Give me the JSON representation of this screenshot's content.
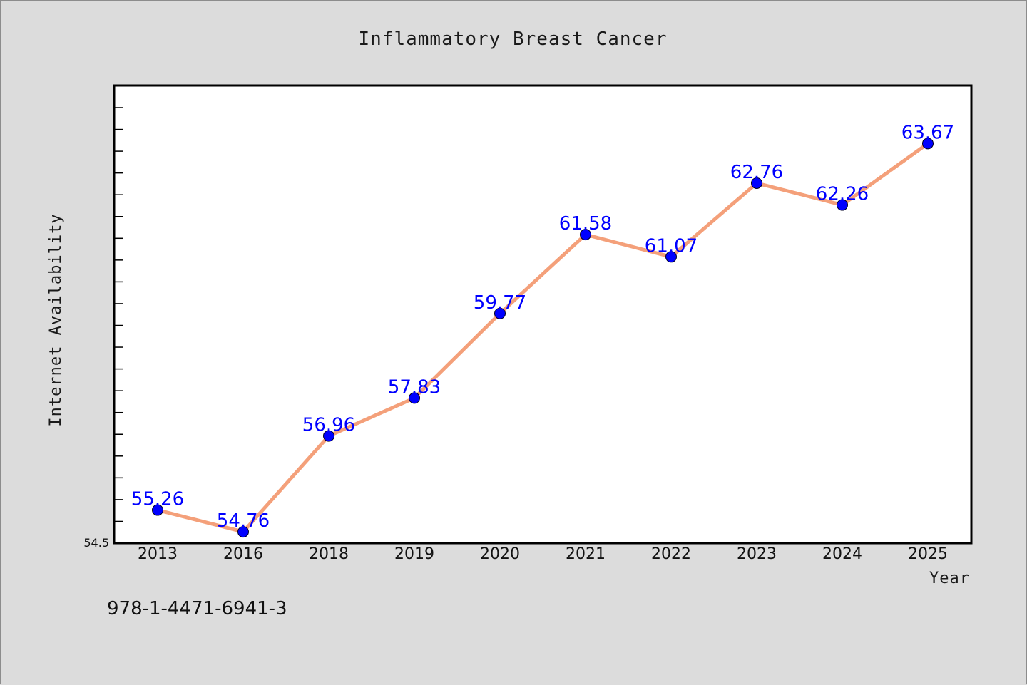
{
  "chart_data": {
    "type": "line",
    "title": "Inflammatory Breast Cancer",
    "xlabel": "Year",
    "ylabel": "Internet Availability",
    "categories": [
      "2013",
      "2016",
      "2018",
      "2019",
      "2020",
      "2021",
      "2022",
      "2023",
      "2024",
      "2025"
    ],
    "series": [
      {
        "values": [
          55.26,
          54.76,
          56.96,
          57.83,
          59.77,
          61.58,
          61.07,
          62.76,
          62.26,
          63.67
        ],
        "data_labels": [
          "55.26",
          "54.76",
          "56.96",
          "57.83",
          "59.77",
          "61.58",
          "61.07",
          "62.76",
          "62.26",
          "63.67"
        ],
        "line_color": "#f4a07a",
        "marker_color": "#0000ff"
      }
    ],
    "ylim": [
      54.5,
      65.0
    ],
    "y_tick_label": "54.5",
    "grid": false,
    "legend": "none"
  },
  "footer": {
    "isbn": "978-1-4471-6941-3"
  }
}
